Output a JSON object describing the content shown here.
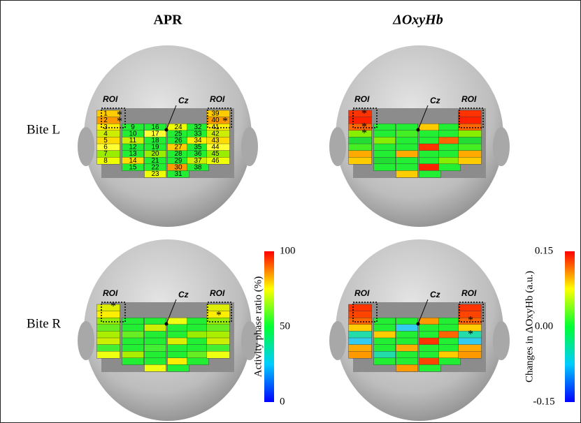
{
  "column_titles": [
    "APR",
    "ΔOxyHb"
  ],
  "row_labels": [
    "Bite L",
    "Bite R"
  ],
  "panels": [
    {
      "roi_labels": [
        "ROI",
        "ROI"
      ],
      "cz": "Cz",
      "stars": [
        "*",
        "*",
        "*"
      ],
      "channels": [
        "1",
        "2",
        "3",
        "4",
        "5",
        "6",
        "7",
        "8",
        "9",
        "10",
        "11",
        "12",
        "13",
        "14",
        "15",
        "16",
        "17",
        "18",
        "19",
        "20",
        "21",
        "22",
        "23",
        "24",
        "25",
        "26",
        "27",
        "28",
        "29",
        "30",
        "31",
        "32",
        "33",
        "34",
        "35",
        "36",
        "37",
        "38",
        "39",
        "40",
        "41",
        "42",
        "43",
        "44",
        "45",
        "46"
      ]
    },
    {
      "roi_labels": [
        "ROI",
        "ROI"
      ],
      "cz": "Cz",
      "stars": [
        "*",
        "*",
        "*"
      ]
    },
    {
      "roi_labels": [
        "ROI",
        "ROI"
      ],
      "cz": "Cz",
      "stars": [
        "*",
        "*"
      ]
    },
    {
      "roi_labels": [
        "ROI",
        "ROI"
      ],
      "cz": "Cz",
      "stars": [
        "*",
        "*"
      ]
    }
  ],
  "colorbars": [
    {
      "label": "Activity phase ratio (%)",
      "ticks": [
        "100",
        "50",
        "0"
      ]
    },
    {
      "label": "Changes in ΔOxyHb (a.u.)",
      "ticks": [
        "0.15",
        "0.00",
        "-0.15"
      ]
    }
  ]
}
